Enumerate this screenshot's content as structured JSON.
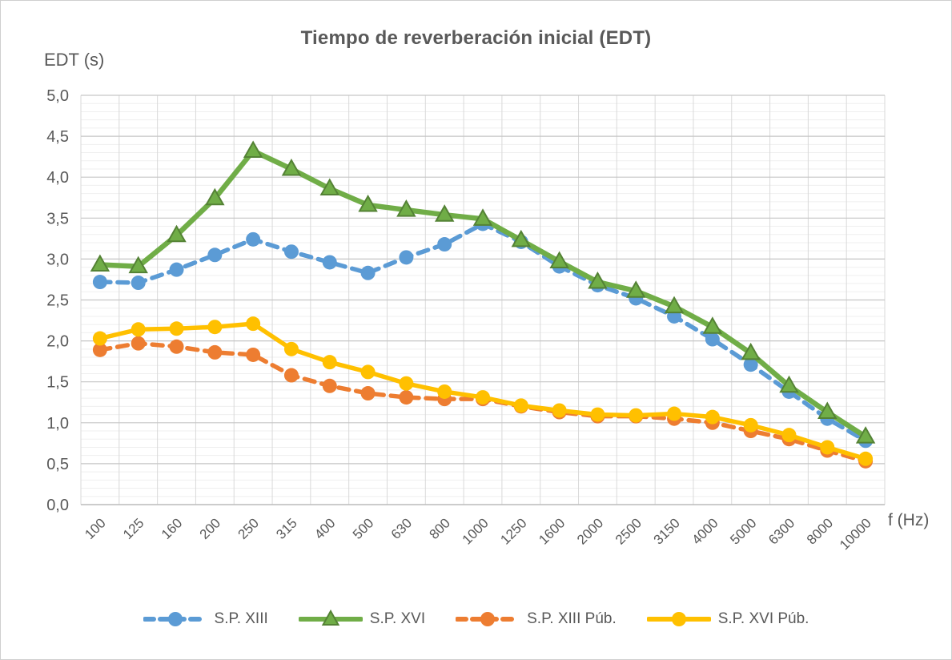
{
  "chart_data": {
    "type": "line",
    "title": "Tiempo de reverberación inicial (EDT)",
    "ylabel": "EDT (s)",
    "xlabel": "f (Hz)",
    "categories": [
      "100",
      "125",
      "160",
      "200",
      "250",
      "315",
      "400",
      "500",
      "630",
      "800",
      "1000",
      "1250",
      "1600",
      "2000",
      "2500",
      "3150",
      "4000",
      "5000",
      "6300",
      "8000",
      "10000"
    ],
    "ylim": [
      0,
      5
    ],
    "y_major_step": 0.5,
    "y_minor_step": 0.1,
    "y_tick_labels": [
      "0,0",
      "0,5",
      "1,0",
      "1,5",
      "2,0",
      "2,5",
      "3,0",
      "3,5",
      "4,0",
      "4,5",
      "5,0"
    ],
    "grid": true,
    "legend_position": "bottom",
    "series": [
      {
        "name": "S.P. XIII",
        "color": "#5B9BD5",
        "line": "dashed",
        "marker": "circle",
        "values": [
          2.72,
          2.71,
          2.87,
          3.05,
          3.24,
          3.09,
          2.96,
          2.83,
          3.02,
          3.18,
          3.43,
          3.21,
          2.91,
          2.68,
          2.52,
          2.3,
          2.02,
          1.71,
          1.38,
          1.05,
          0.78
        ]
      },
      {
        "name": "S.P. XVI",
        "color": "#70AD47",
        "marker_edge": "#548235",
        "line": "solid",
        "marker": "triangle",
        "values": [
          2.93,
          2.91,
          3.29,
          3.74,
          4.32,
          4.1,
          3.86,
          3.66,
          3.6,
          3.54,
          3.49,
          3.23,
          2.97,
          2.72,
          2.61,
          2.42,
          2.17,
          1.85,
          1.45,
          1.13,
          0.83
        ]
      },
      {
        "name": "S.P. XIII Púb.",
        "color": "#ED7D31",
        "line": "dashed",
        "marker": "circle",
        "values": [
          1.89,
          1.97,
          1.93,
          1.86,
          1.83,
          1.58,
          1.45,
          1.36,
          1.31,
          1.29,
          1.29,
          1.2,
          1.13,
          1.08,
          1.08,
          1.05,
          1.0,
          0.9,
          0.8,
          0.66,
          0.53
        ]
      },
      {
        "name": "S.P. XVI Púb.",
        "color": "#FFC000",
        "line": "solid",
        "marker": "circle",
        "values": [
          2.03,
          2.14,
          2.15,
          2.17,
          2.21,
          1.9,
          1.74,
          1.62,
          1.48,
          1.38,
          1.31,
          1.21,
          1.15,
          1.1,
          1.09,
          1.11,
          1.07,
          0.97,
          0.85,
          0.7,
          0.56
        ]
      }
    ]
  },
  "styles": {
    "text_color": "#595959",
    "grid_major": "#C6C6C6",
    "grid_minor": "#EFEFEF",
    "grid_vertical": "#D9D9D9",
    "axis_line": "#BFBFBF",
    "background": "#FFFFFF",
    "border": "#CFCFCF"
  }
}
